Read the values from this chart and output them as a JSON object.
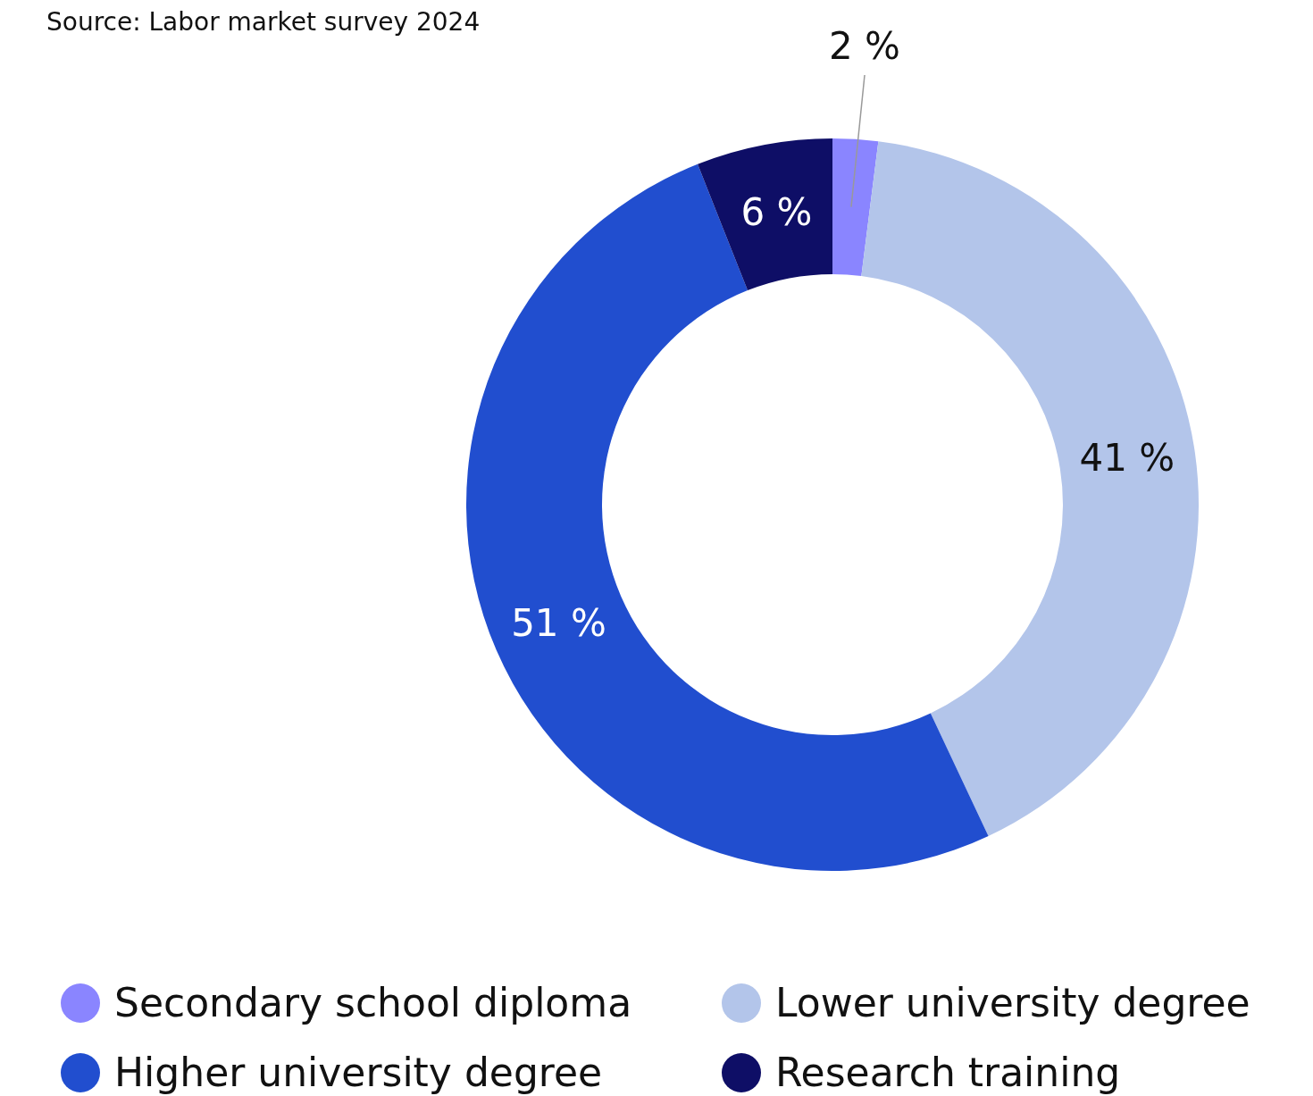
{
  "chart_data": {
    "type": "donut",
    "annotations": [
      "Source: Labor market survey 2024"
    ],
    "categories": [
      "Secondary school diploma",
      "Lower university degree",
      "Higher university degree",
      "Research training"
    ],
    "values": [
      2,
      41,
      51,
      6
    ],
    "colors": [
      "#8a85ff",
      "#b3c5ea",
      "#214ecf",
      "#0e0e66"
    ],
    "value_labels": [
      "2 %",
      "41 %",
      "51 %",
      "6 %"
    ],
    "legend": "bottom"
  }
}
